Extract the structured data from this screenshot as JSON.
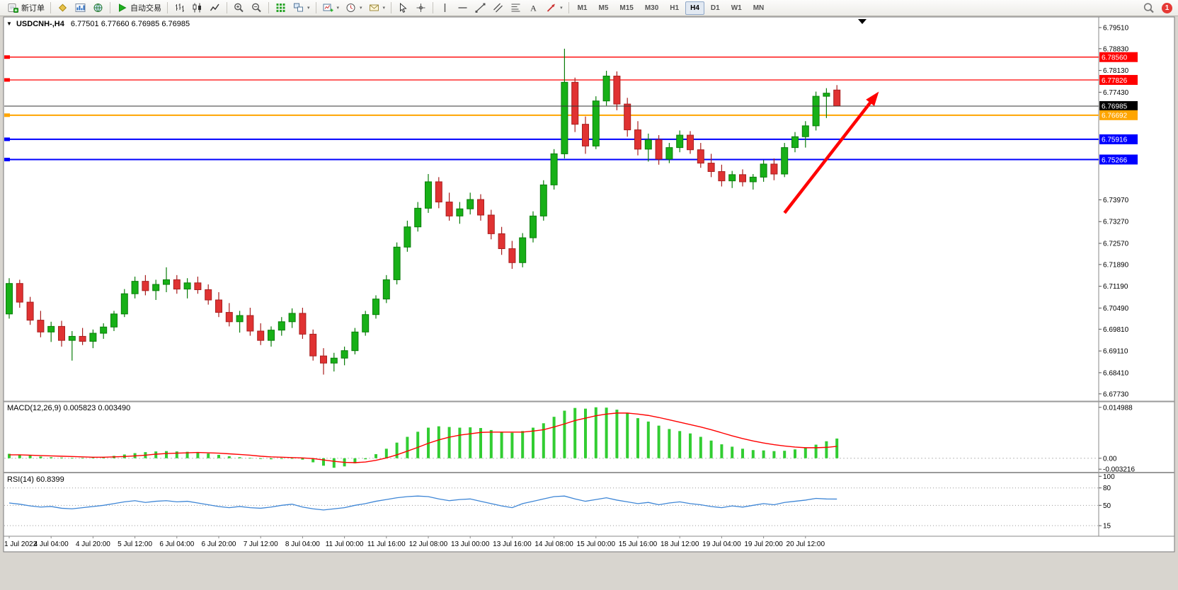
{
  "toolbar": {
    "groups": [
      {
        "name": "order-group",
        "items": [
          {
            "name": "new-order-button",
            "icon": "new-order",
            "label": "新订单"
          }
        ]
      },
      {
        "name": "panels-group",
        "items": [
          {
            "name": "charts-button",
            "icon": "gold-diamond"
          },
          {
            "name": "market-watch-button",
            "icon": "blue-chart"
          },
          {
            "name": "navigator-button",
            "icon": "globe"
          }
        ]
      },
      {
        "name": "autotrade-group",
        "items": [
          {
            "name": "autotrade-button",
            "icon": "play",
            "label": "自动交易"
          }
        ]
      },
      {
        "name": "chart-type-group",
        "items": [
          {
            "name": "ohlc-bars-button",
            "icon": "bars"
          },
          {
            "name": "candlestick-button",
            "icon": "candles"
          },
          {
            "name": "line-chart-button",
            "icon": "linechart"
          }
        ]
      },
      {
        "name": "zoom-group",
        "items": [
          {
            "name": "zoom-in-button",
            "icon": "zoom-in"
          },
          {
            "name": "zoom-out-button",
            "icon": "zoom-out"
          }
        ]
      },
      {
        "name": "indicators-group",
        "items": [
          {
            "name": "indicators-button",
            "icon": "grid-green"
          },
          {
            "name": "tile-windows-button",
            "icon": "tile",
            "dropdown": true
          }
        ]
      },
      {
        "name": "chart-tools-group",
        "items": [
          {
            "name": "new-chart-button",
            "icon": "chart-plus",
            "dropdown": true
          },
          {
            "name": "periods-button",
            "icon": "clock",
            "dropdown": true
          },
          {
            "name": "templates-button",
            "icon": "mail",
            "dropdown": true
          }
        ]
      },
      {
        "name": "cursor-group",
        "items": [
          {
            "name": "cursor-button",
            "icon": "cursor"
          },
          {
            "name": "crosshair-button",
            "icon": "crosshair"
          }
        ]
      },
      {
        "name": "draw-group",
        "items": [
          {
            "name": "vertical-line-button",
            "icon": "vline"
          },
          {
            "name": "horizontal-line-button",
            "icon": "hline"
          },
          {
            "name": "trendline-button",
            "icon": "trendline"
          },
          {
            "name": "channel-button",
            "icon": "channel"
          },
          {
            "name": "fibonacci-button",
            "icon": "fibo"
          },
          {
            "name": "text-button",
            "icon": "textA"
          },
          {
            "name": "arrows-button",
            "icon": "arrows",
            "dropdown": true
          }
        ]
      }
    ],
    "timeframes": [
      {
        "label": "M1"
      },
      {
        "label": "M5"
      },
      {
        "label": "M15"
      },
      {
        "label": "M30"
      },
      {
        "label": "H1"
      },
      {
        "label": "H4",
        "active": true
      },
      {
        "label": "D1"
      },
      {
        "label": "W1"
      },
      {
        "label": "MN"
      }
    ],
    "right": [
      {
        "name": "search-button",
        "icon": "magnifier"
      },
      {
        "name": "notifications-badge",
        "label": "1",
        "badge": true
      }
    ]
  },
  "chart": {
    "collapse_icon": "▼",
    "symbol_period": "USDCNH-,H4",
    "ohlc_text": "6.77501 6.77660 6.76985 6.76985"
  },
  "chart_data": {
    "type": "candlestick",
    "symbol": "USDCNH",
    "timeframe": "H4",
    "x_label_step": 4,
    "x_labels": [
      "1 Jul 2022",
      "4 Jul 04:00",
      "4 Jul 20:00",
      "5 Jul 12:00",
      "6 Jul 04:00",
      "6 Jul 20:00",
      "7 Jul 12:00",
      "8 Jul 04:00",
      "11 Jul 00:00",
      "11 Jul 16:00",
      "12 Jul 08:00",
      "13 Jul 00:00",
      "13 Jul 16:00",
      "14 Jul 08:00",
      "15 Jul 00:00",
      "15 Jul 16:00",
      "18 Jul 12:00",
      "19 Jul 04:00",
      "19 Jul 20:00",
      "20 Jul 12:00"
    ],
    "price_axis": {
      "view_max": 6.7985,
      "view_min": 6.6752,
      "ticks": [
        {
          "label": "6.79510",
          "value": 6.7951
        },
        {
          "label": "6.78830",
          "value": 6.7883
        },
        {
          "label": "6.78130",
          "value": 6.7813
        },
        {
          "label": "6.77430",
          "value": 6.7743
        },
        {
          "label": "6.73970",
          "value": 6.7397
        },
        {
          "label": "6.73270",
          "value": 6.7327
        },
        {
          "label": "6.72570",
          "value": 6.7257
        },
        {
          "label": "6.71890",
          "value": 6.7189
        },
        {
          "label": "6.71190",
          "value": 6.7119
        },
        {
          "label": "6.70490",
          "value": 6.7049
        },
        {
          "label": "6.69810",
          "value": 6.6981
        },
        {
          "label": "6.69110",
          "value": 6.6911
        },
        {
          "label": "6.68410",
          "value": 6.6841
        },
        {
          "label": "6.67730",
          "value": 6.6773
        }
      ]
    },
    "hlines": [
      {
        "label": "6.78560",
        "price": 6.7856,
        "color": "#FF0000",
        "width": 1.3
      },
      {
        "label": "6.77826",
        "price": 6.77826,
        "color": "#FF0000",
        "width": 1.3
      },
      {
        "label": "6.76692",
        "price": 6.76692,
        "color": "#FFA500",
        "width": 2
      },
      {
        "label": "6.75916",
        "price": 6.75916,
        "color": "#0000FF",
        "width": 2
      },
      {
        "label": "6.75266",
        "price": 6.75266,
        "color": "#0000FF",
        "width": 2
      }
    ],
    "bid": {
      "label": "6.76985",
      "price": 6.76985,
      "color": "#000000"
    },
    "trend_arrow": {
      "from_bar": 74,
      "from_price": 6.7355,
      "to_bar": 83,
      "to_price": 6.7745,
      "color": "#FF0000"
    },
    "candle_colors": {
      "up_fill": "#17B017",
      "up_stroke": "#0A7D0A",
      "down_fill": "#E03232",
      "down_stroke": "#A81F1F"
    },
    "candles": [
      [
        6.703,
        6.7145,
        6.7015,
        6.7128
      ],
      [
        6.7128,
        6.714,
        6.705,
        6.7068
      ],
      [
        6.7068,
        6.7085,
        6.6995,
        6.701
      ],
      [
        6.701,
        6.704,
        6.6955,
        6.6972
      ],
      [
        6.6972,
        6.7005,
        6.694,
        6.699
      ],
      [
        6.699,
        6.7008,
        6.6925,
        6.6945
      ],
      [
        6.6945,
        6.6975,
        6.688,
        6.6958
      ],
      [
        6.6958,
        6.6985,
        6.693,
        6.6942
      ],
      [
        6.6942,
        6.698,
        6.692,
        6.6968
      ],
      [
        6.6968,
        6.7,
        6.695,
        6.6988
      ],
      [
        6.6988,
        6.704,
        6.6975,
        6.703
      ],
      [
        6.703,
        6.711,
        6.702,
        6.7095
      ],
      [
        6.7095,
        6.715,
        6.708,
        6.7135
      ],
      [
        6.7135,
        6.7155,
        6.709,
        6.7105
      ],
      [
        6.7105,
        6.714,
        6.7075,
        6.7125
      ],
      [
        6.7125,
        6.718,
        6.71,
        6.714
      ],
      [
        6.714,
        6.7155,
        6.7095,
        6.711
      ],
      [
        6.711,
        6.7145,
        6.708,
        6.713
      ],
      [
        6.713,
        6.715,
        6.7095,
        6.7108
      ],
      [
        6.7108,
        6.7125,
        6.706,
        6.7075
      ],
      [
        6.7075,
        6.71,
        6.702,
        6.7035
      ],
      [
        6.7035,
        6.7065,
        6.699,
        6.7005
      ],
      [
        6.7005,
        6.704,
        6.697,
        6.7025
      ],
      [
        6.7025,
        6.705,
        6.696,
        6.6975
      ],
      [
        6.6975,
        6.7,
        6.693,
        6.6945
      ],
      [
        6.6945,
        6.699,
        6.6925,
        6.6978
      ],
      [
        6.6978,
        6.702,
        6.696,
        6.7005
      ],
      [
        6.7005,
        6.7048,
        6.6985,
        6.7032
      ],
      [
        6.7032,
        6.705,
        6.695,
        6.6965
      ],
      [
        6.6965,
        6.698,
        6.688,
        6.6895
      ],
      [
        6.6895,
        6.692,
        6.6835,
        6.6872
      ],
      [
        6.6872,
        6.6905,
        6.6845,
        6.6888
      ],
      [
        6.6888,
        6.6925,
        6.6865,
        6.6912
      ],
      [
        6.6912,
        6.6985,
        6.69,
        6.6972
      ],
      [
        6.6972,
        6.704,
        6.696,
        6.7028
      ],
      [
        6.7028,
        6.709,
        6.7015,
        6.7078
      ],
      [
        6.7078,
        6.7155,
        6.7065,
        6.714
      ],
      [
        6.714,
        6.726,
        6.7125,
        6.7245
      ],
      [
        6.7245,
        6.733,
        6.723,
        6.731
      ],
      [
        6.731,
        6.739,
        6.7295,
        6.737
      ],
      [
        6.737,
        6.748,
        6.7355,
        6.7455
      ],
      [
        6.7455,
        6.747,
        6.737,
        6.739
      ],
      [
        6.739,
        6.742,
        6.733,
        6.7345
      ],
      [
        6.7345,
        6.739,
        6.732,
        6.7368
      ],
      [
        6.7368,
        6.742,
        6.735,
        6.7398
      ],
      [
        6.7398,
        6.7415,
        6.733,
        6.7348
      ],
      [
        6.7348,
        6.7365,
        6.727,
        6.7288
      ],
      [
        6.7288,
        6.731,
        6.722,
        6.724
      ],
      [
        6.724,
        6.7265,
        6.7175,
        6.7195
      ],
      [
        6.7195,
        6.729,
        6.718,
        6.7275
      ],
      [
        6.7275,
        6.736,
        6.726,
        6.7345
      ],
      [
        6.7345,
        6.746,
        6.733,
        6.7445
      ],
      [
        6.7445,
        6.756,
        6.743,
        6.7545
      ],
      [
        6.7545,
        6.7883,
        6.753,
        6.7775
      ],
      [
        6.7775,
        6.779,
        6.7615,
        6.764
      ],
      [
        6.764,
        6.7665,
        6.7545,
        6.757
      ],
      [
        6.757,
        6.773,
        6.756,
        6.7715
      ],
      [
        6.7715,
        6.7812,
        6.77,
        6.7795
      ],
      [
        6.7795,
        6.781,
        6.7685,
        6.7705
      ],
      [
        6.7705,
        6.7725,
        6.76,
        6.7622
      ],
      [
        6.7622,
        6.765,
        6.754,
        6.756
      ],
      [
        6.756,
        6.761,
        6.752,
        6.759
      ],
      [
        6.759,
        6.7605,
        6.751,
        6.7528
      ],
      [
        6.7528,
        6.758,
        6.7515,
        6.7565
      ],
      [
        6.7565,
        6.762,
        6.755,
        6.7605
      ],
      [
        6.7605,
        6.7618,
        6.7545,
        6.7558
      ],
      [
        6.7558,
        6.758,
        6.75,
        6.7515
      ],
      [
        6.7515,
        6.7545,
        6.747,
        6.7488
      ],
      [
        6.7488,
        6.751,
        6.744,
        6.7458
      ],
      [
        6.7458,
        6.749,
        6.7435,
        6.7478
      ],
      [
        6.7478,
        6.7495,
        6.744,
        6.7455
      ],
      [
        6.7455,
        6.748,
        6.743,
        6.747
      ],
      [
        6.747,
        6.7525,
        6.7455,
        6.7512
      ],
      [
        6.7512,
        6.753,
        6.746,
        6.748
      ],
      [
        6.748,
        6.758,
        6.747,
        6.7565
      ],
      [
        6.7565,
        6.7615,
        6.755,
        6.76
      ],
      [
        6.76,
        6.765,
        6.7565,
        6.7635
      ],
      [
        6.7635,
        6.7745,
        6.762,
        6.773
      ],
      [
        6.773,
        6.7756,
        6.766,
        6.774
      ],
      [
        6.77501,
        6.7766,
        6.76985,
        6.76985
      ]
    ],
    "indicators": {
      "macd": {
        "label": "MACD(12,26,9) 0.005823 0.003490",
        "view_max": 0.0164,
        "view_min": -0.0038,
        "hist_color": "#32CD32",
        "signal_color": "#FF0000",
        "scale": [
          {
            "label": "0.014988",
            "value": 0.014988
          },
          {
            "label": "0.00",
            "value": 0
          },
          {
            "label": "-0.003216",
            "value": -0.003216
          }
        ],
        "histogram": [
          0.0013,
          0.0011,
          0.0008,
          0.0005,
          0.0003,
          0.0002,
          0.0001,
          0.0001,
          0.0002,
          0.0004,
          0.0007,
          0.0011,
          0.0015,
          0.0018,
          0.002,
          0.0021,
          0.002,
          0.0019,
          0.0017,
          0.0014,
          0.001,
          0.0006,
          0.0003,
          0.0001,
          -0.0002,
          -0.0003,
          -0.0002,
          -0.0001,
          -0.0004,
          -0.0012,
          -0.0022,
          -0.0028,
          -0.0024,
          -0.0015,
          -0.0003,
          0.0012,
          0.0028,
          0.0046,
          0.0063,
          0.0078,
          0.009,
          0.0094,
          0.0092,
          0.009,
          0.0091,
          0.0089,
          0.0083,
          0.0078,
          0.0075,
          0.008,
          0.009,
          0.0103,
          0.0122,
          0.014,
          0.0148,
          0.0146,
          0.015,
          0.0149,
          0.0143,
          0.0132,
          0.0118,
          0.0108,
          0.0096,
          0.0086,
          0.008,
          0.0073,
          0.0063,
          0.0052,
          0.0041,
          0.0034,
          0.0028,
          0.0024,
          0.0023,
          0.0021,
          0.0022,
          0.0026,
          0.003,
          0.004,
          0.005,
          0.0058
        ],
        "signal": [
          0.001,
          0.001,
          0.0009,
          0.0008,
          0.0007,
          0.0006,
          0.0005,
          0.0004,
          0.0003,
          0.0003,
          0.0004,
          0.0005,
          0.0007,
          0.0009,
          0.0012,
          0.0014,
          0.0015,
          0.0016,
          0.0017,
          0.0016,
          0.0015,
          0.0013,
          0.0011,
          0.0009,
          0.0006,
          0.0004,
          0.0003,
          0.0002,
          0.0001,
          -0.0001,
          -0.0005,
          -0.0009,
          -0.0012,
          -0.0013,
          -0.0011,
          -0.0006,
          0.0001,
          0.001,
          0.0021,
          0.0032,
          0.0044,
          0.0054,
          0.0062,
          0.0068,
          0.0072,
          0.0076,
          0.0077,
          0.0077,
          0.0077,
          0.0077,
          0.008,
          0.0084,
          0.0092,
          0.0101,
          0.0111,
          0.0118,
          0.0125,
          0.013,
          0.0133,
          0.0133,
          0.013,
          0.0126,
          0.012,
          0.0113,
          0.0106,
          0.0099,
          0.0092,
          0.0084,
          0.0075,
          0.0066,
          0.0058,
          0.0051,
          0.0045,
          0.004,
          0.0036,
          0.0033,
          0.0031,
          0.0031,
          0.0032,
          0.0035
        ]
      },
      "rsi": {
        "label": "RSI(14) 60.8399",
        "view_max": 104,
        "view_min": -2,
        "color": "#3E86D6",
        "levels": [
          80,
          50,
          15
        ],
        "scale": [
          {
            "label": "100",
            "value": 100
          },
          {
            "label": "80",
            "value": 80
          },
          {
            "label": "50",
            "value": 50
          },
          {
            "label": "15",
            "value": 15
          }
        ],
        "values": [
          54,
          52,
          49,
          47,
          48,
          45,
          44,
          46,
          48,
          50,
          53,
          56,
          58,
          55,
          57,
          58,
          56,
          57,
          54,
          51,
          48,
          46,
          48,
          46,
          45,
          47,
          50,
          52,
          47,
          44,
          42,
          44,
          46,
          50,
          53,
          57,
          60,
          63,
          65,
          66,
          65,
          61,
          58,
          60,
          61,
          57,
          53,
          49,
          46,
          53,
          57,
          61,
          65,
          66,
          61,
          57,
          60,
          63,
          59,
          56,
          53,
          55,
          51,
          54,
          56,
          53,
          51,
          48,
          46,
          49,
          47,
          50,
          53,
          51,
          55,
          57,
          59,
          62,
          61,
          60.84
        ]
      }
    }
  }
}
